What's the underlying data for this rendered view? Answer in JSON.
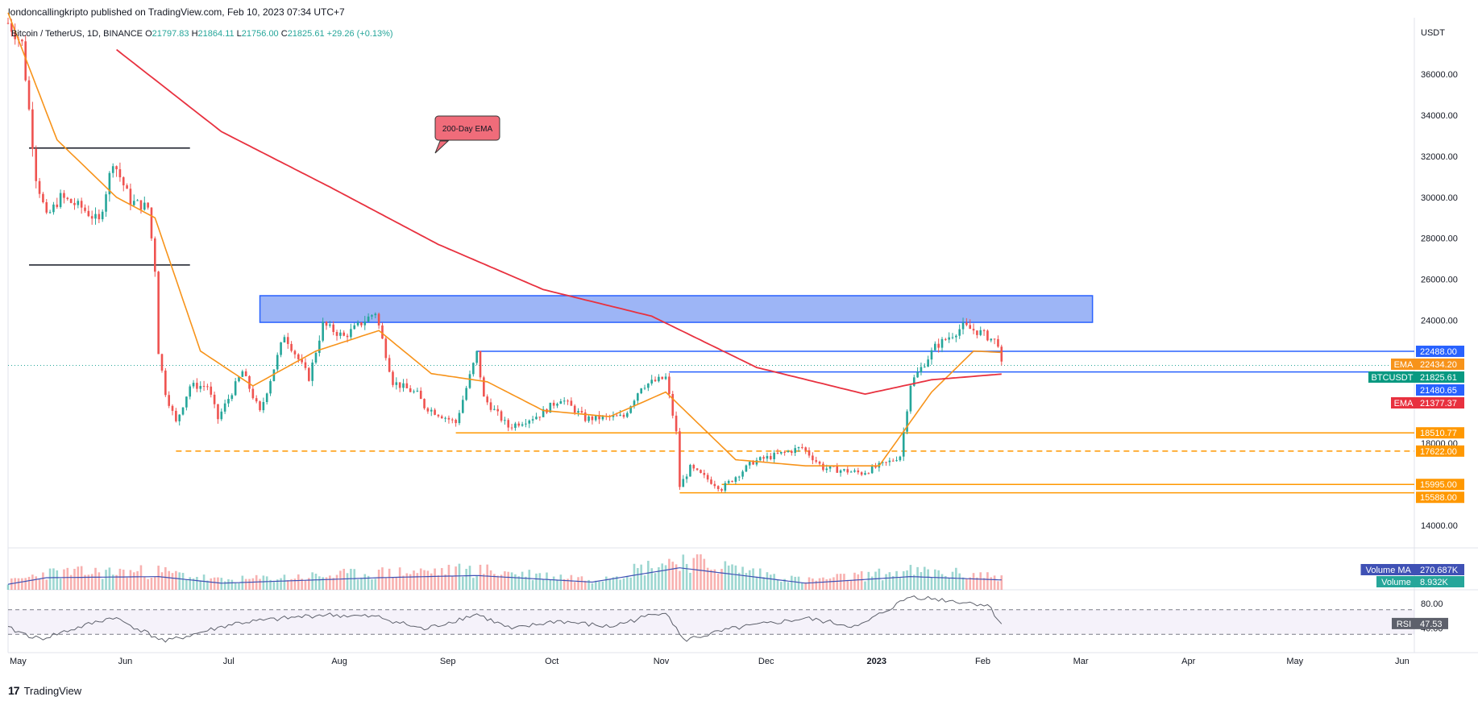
{
  "header": {
    "published_by": "londoncallingkripto published on TradingView.com, Feb 10, 2023 07:34 UTC+7"
  },
  "legend": {
    "symbol": "Bitcoin / TetherUS, 1D, BINANCE",
    "o_label": "O",
    "o_value": "21797.83",
    "h_label": "H",
    "h_value": "21864.11",
    "l_label": "L",
    "l_value": "21756.00",
    "c_label": "C",
    "c_value": "21825.61",
    "change": "+29.26 (+0.13%)"
  },
  "annotation": {
    "text": "200-Day EMA"
  },
  "footer": {
    "logo_text": "TradingView"
  },
  "colors": {
    "up": "#26a69a",
    "down": "#ef5350",
    "ema_fast": "#f7931a",
    "ema_200": "#e8313f",
    "zone": "#5b84f0",
    "level_blue": "#2962ff",
    "level_orange": "#ff9800",
    "rsi": "#5d606b",
    "volume_ma": "#3f51b5"
  },
  "chart_data": {
    "type": "candlestick",
    "currency": "USDT",
    "y_range": [
      12900,
      38600
    ],
    "y_ticks": [
      "14000.00",
      "16000.00",
      "18000.00",
      "20000.00",
      "22000.00",
      "24000.00",
      "26000.00",
      "28000.00",
      "30000.00",
      "32000.00",
      "34000.00",
      "36000.00"
    ],
    "x_range": [
      "2022-05-01",
      "2023-06-07"
    ],
    "x_ticks": [
      {
        "label": "May",
        "date": "2022-05-01"
      },
      {
        "label": "Jun",
        "date": "2022-06-01"
      },
      {
        "label": "Jul",
        "date": "2022-07-01"
      },
      {
        "label": "Aug",
        "date": "2022-08-01"
      },
      {
        "label": "Sep",
        "date": "2022-09-01"
      },
      {
        "label": "Oct",
        "date": "2022-10-01"
      },
      {
        "label": "Nov",
        "date": "2022-11-01"
      },
      {
        "label": "Dec",
        "date": "2022-12-01"
      },
      {
        "label": "2023",
        "date": "2023-01-01",
        "bold": true
      },
      {
        "label": "Feb",
        "date": "2023-02-01"
      },
      {
        "label": "Mar",
        "date": "2023-03-01"
      },
      {
        "label": "Apr",
        "date": "2023-04-01"
      },
      {
        "label": "May",
        "date": "2023-05-01"
      },
      {
        "label": "Jun",
        "date": "2023-06-01"
      }
    ],
    "price_anchors": [
      [
        "2022-05-01",
        38500
      ],
      [
        "2022-05-05",
        37500
      ],
      [
        "2022-05-09",
        31000
      ],
      [
        "2022-05-12",
        29000
      ],
      [
        "2022-05-16",
        30000
      ],
      [
        "2022-05-22",
        29500
      ],
      [
        "2022-05-27",
        28800
      ],
      [
        "2022-05-31",
        31800
      ],
      [
        "2022-06-05",
        29800
      ],
      [
        "2022-06-10",
        29500
      ],
      [
        "2022-06-12",
        26500
      ],
      [
        "2022-06-13",
        22500
      ],
      [
        "2022-06-15",
        20500
      ],
      [
        "2022-06-18",
        19000
      ],
      [
        "2022-06-22",
        20800
      ],
      [
        "2022-06-27",
        20800
      ],
      [
        "2022-06-30",
        19200
      ],
      [
        "2022-07-07",
        21500
      ],
      [
        "2022-07-12",
        19500
      ],
      [
        "2022-07-19",
        23300
      ],
      [
        "2022-07-26",
        21200
      ],
      [
        "2022-07-30",
        23800
      ],
      [
        "2022-08-05",
        23200
      ],
      [
        "2022-08-14",
        24400
      ],
      [
        "2022-08-19",
        21000
      ],
      [
        "2022-08-26",
        20400
      ],
      [
        "2022-08-28",
        19800
      ],
      [
        "2022-09-06",
        19000
      ],
      [
        "2022-09-12",
        22400
      ],
      [
        "2022-09-14",
        20200
      ],
      [
        "2022-09-21",
        18800
      ],
      [
        "2022-09-30",
        19400
      ],
      [
        "2022-10-06",
        20200
      ],
      [
        "2022-10-13",
        19200
      ],
      [
        "2022-10-24",
        19300
      ],
      [
        "2022-10-29",
        20800
      ],
      [
        "2022-11-05",
        21200
      ],
      [
        "2022-11-08",
        18500
      ],
      [
        "2022-11-09",
        15900
      ],
      [
        "2022-11-12",
        16800
      ],
      [
        "2022-11-21",
        15800
      ],
      [
        "2022-11-30",
        17100
      ],
      [
        "2022-12-14",
        17800
      ],
      [
        "2022-12-20",
        16800
      ],
      [
        "2022-12-31",
        16550
      ],
      [
        "2023-01-08",
        17100
      ],
      [
        "2023-01-11",
        17400
      ],
      [
        "2023-01-14",
        20900
      ],
      [
        "2023-01-21",
        22700
      ],
      [
        "2023-01-29",
        23700
      ],
      [
        "2023-02-03",
        23400
      ],
      [
        "2023-02-08",
        22900
      ],
      [
        "2023-02-09",
        21800
      ]
    ],
    "ema_fast_anchors": [
      [
        "2022-05-01",
        39000
      ],
      [
        "2022-05-15",
        32800
      ],
      [
        "2022-06-01",
        30000
      ],
      [
        "2022-06-12",
        29000
      ],
      [
        "2022-06-25",
        22500
      ],
      [
        "2022-07-10",
        20800
      ],
      [
        "2022-07-28",
        22500
      ],
      [
        "2022-08-15",
        23500
      ],
      [
        "2022-08-30",
        21400
      ],
      [
        "2022-09-15",
        21000
      ],
      [
        "2022-10-01",
        19600
      ],
      [
        "2022-10-20",
        19300
      ],
      [
        "2022-11-05",
        20500
      ],
      [
        "2022-11-25",
        17200
      ],
      [
        "2022-12-15",
        16900
      ],
      [
        "2023-01-05",
        16900
      ],
      [
        "2023-01-20",
        20500
      ],
      [
        "2023-02-01",
        22500
      ],
      [
        "2023-02-09",
        22434
      ]
    ],
    "ema_200_anchors": [
      [
        "2022-06-01",
        37200
      ],
      [
        "2022-07-01",
        33200
      ],
      [
        "2022-08-01",
        30500
      ],
      [
        "2022-09-01",
        27700
      ],
      [
        "2022-10-01",
        25500
      ],
      [
        "2022-11-01",
        24200
      ],
      [
        "2022-12-01",
        21700
      ],
      [
        "2023-01-01",
        20400
      ],
      [
        "2023-01-20",
        21100
      ],
      [
        "2023-02-09",
        21377
      ]
    ],
    "rsi_anchors": [
      [
        "2022-05-01",
        40
      ],
      [
        "2022-05-10",
        22
      ],
      [
        "2022-05-31",
        58
      ],
      [
        "2022-06-15",
        18
      ],
      [
        "2022-07-05",
        48
      ],
      [
        "2022-07-30",
        62
      ],
      [
        "2022-08-15",
        58
      ],
      [
        "2022-08-28",
        38
      ],
      [
        "2022-09-12",
        63
      ],
      [
        "2022-09-22",
        38
      ],
      [
        "2022-10-05",
        52
      ],
      [
        "2022-10-20",
        42
      ],
      [
        "2022-11-05",
        68
      ],
      [
        "2022-11-10",
        20
      ],
      [
        "2022-11-25",
        40
      ],
      [
        "2022-12-15",
        56
      ],
      [
        "2022-12-30",
        42
      ],
      [
        "2023-01-14",
        92
      ],
      [
        "2023-01-22",
        87
      ],
      [
        "2023-02-05",
        78
      ],
      [
        "2023-02-09",
        47.53
      ]
    ],
    "volume_anchors": [
      [
        "2022-05-01",
        0.25
      ],
      [
        "2022-05-12",
        0.55
      ],
      [
        "2022-06-13",
        0.6
      ],
      [
        "2022-07-01",
        0.3
      ],
      [
        "2022-08-15",
        0.55
      ],
      [
        "2022-09-12",
        0.65
      ],
      [
        "2022-10-15",
        0.35
      ],
      [
        "2022-11-09",
        1.0
      ],
      [
        "2022-12-15",
        0.3
      ],
      [
        "2023-01-14",
        0.6
      ],
      [
        "2023-02-09",
        0.45
      ]
    ],
    "horizontal_levels": [
      {
        "value": 32400,
        "start": "2022-05-07",
        "end": "2022-06-22",
        "color": "#131722",
        "style": "solid"
      },
      {
        "value": 26700,
        "start": "2022-05-07",
        "end": "2022-06-22",
        "color": "#131722",
        "style": "solid"
      },
      {
        "value": 22488,
        "start": "2022-09-12",
        "end": "2023-06-07",
        "color": "#2962ff",
        "style": "solid"
      },
      {
        "value": 21480.65,
        "start": "2022-11-06",
        "end": "2023-06-07",
        "color": "#2962ff",
        "style": "solid"
      },
      {
        "value": 18510.77,
        "start": "2022-09-06",
        "end": "2023-06-07",
        "color": "#ff9800",
        "style": "solid"
      },
      {
        "value": 17622,
        "start": "2022-06-18",
        "end": "2023-06-07",
        "color": "#ff9800",
        "style": "dashed"
      },
      {
        "value": 15995,
        "start": "2022-11-21",
        "end": "2023-06-07",
        "color": "#ff9800",
        "style": "solid"
      },
      {
        "value": 15588,
        "start": "2022-11-09",
        "end": "2023-06-07",
        "color": "#ff9800",
        "style": "solid"
      }
    ],
    "zones": [
      {
        "y_low": 23900,
        "y_high": 25200,
        "start": "2022-07-12",
        "end": "2023-03-07"
      }
    ],
    "price_labels": [
      {
        "text": "22488.00",
        "value": 22488,
        "bg": "#2962ff"
      },
      {
        "label": "EMA",
        "text": "22434.20",
        "value": 22434.2,
        "bg": "#f7931a"
      },
      {
        "label": "BTCUSDT",
        "text": "21825.61",
        "value": 21825.61,
        "bg": "#089981"
      },
      {
        "text": "21480.65",
        "value": 21480.65,
        "bg": "#2962ff"
      },
      {
        "label": "EMA",
        "text": "21377.37",
        "value": 21377.37,
        "bg": "#e8313f"
      },
      {
        "text": "18510.77",
        "value": 18510.77,
        "bg": "#ff9800"
      },
      {
        "text": "17622.00",
        "value": 17622,
        "bg": "#ff9800"
      },
      {
        "text": "15995.00",
        "value": 15995,
        "bg": "#ff9800"
      },
      {
        "text": "15588.00",
        "value": 15588,
        "bg": "#ff9800"
      }
    ],
    "volume_pane": {
      "labels": [
        {
          "label": "Volume MA",
          "text": "270.687K",
          "bg": "#3f51b5"
        },
        {
          "label": "Volume",
          "text": "8.932K",
          "bg": "#26a69a"
        }
      ]
    },
    "rsi_pane": {
      "y_range": [
        0,
        100
      ],
      "bands": [
        70,
        30
      ],
      "ticks": [
        "80.00",
        "40.00"
      ],
      "label": "RSI",
      "value": "47.53"
    }
  }
}
